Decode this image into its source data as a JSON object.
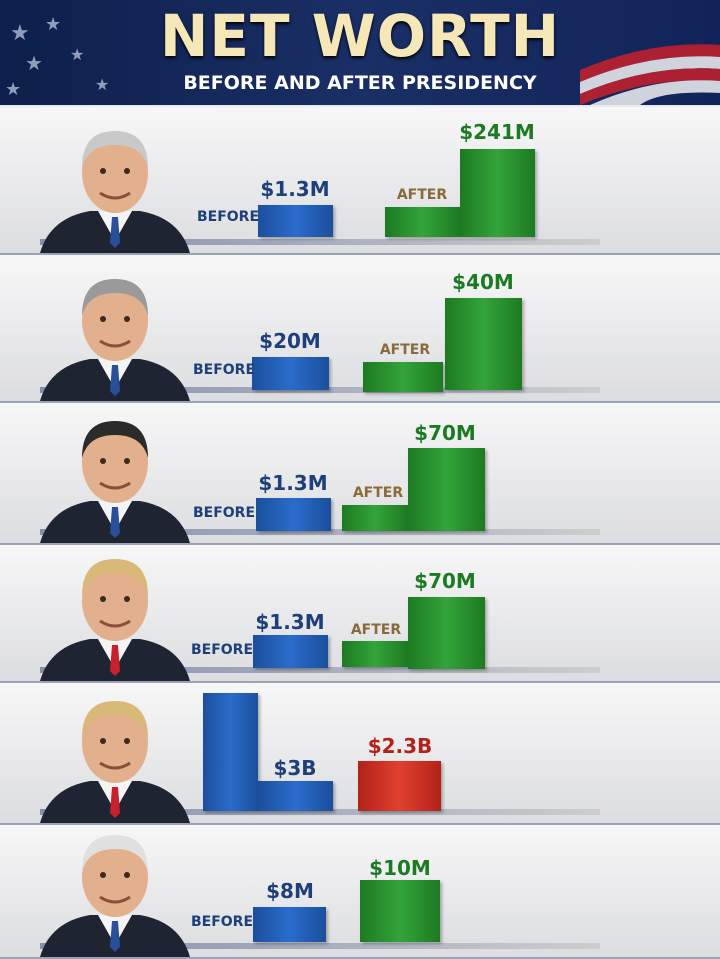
{
  "header": {
    "title": "NET WORTH",
    "subtitle": "BEFORE AND AFTER PRESIDENCY"
  },
  "rows": [
    {
      "before_label": "BEFORE",
      "before_value": "$1.3M",
      "after_label": "AFTER",
      "after_value": "$241M"
    },
    {
      "before_label": "BEFORE",
      "before_value": "$20M",
      "after_label": "AFTER",
      "after_value": "$40M"
    },
    {
      "before_label": "BEFORE",
      "before_value": "$1.3M",
      "after_label": "AFTER",
      "after_value": "$70M"
    },
    {
      "before_label": "BEFORE",
      "before_value": "$1.3M",
      "after_label": "AFTER",
      "after_value": "$70M"
    },
    {
      "before_value": "$3B",
      "after_value": "$2.3B"
    },
    {
      "before_label": "BEFORE",
      "before_value": "$8M",
      "after_value": "$10M"
    }
  ]
}
